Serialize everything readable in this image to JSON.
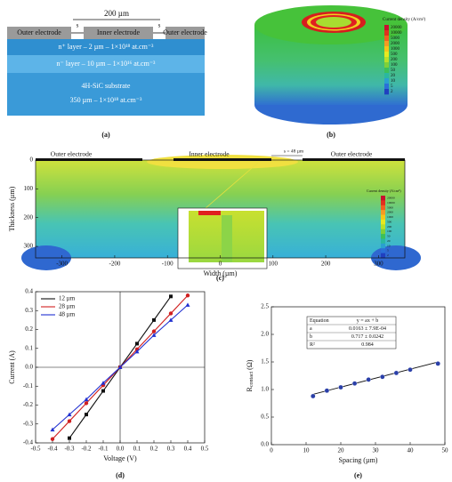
{
  "panels": {
    "a": {
      "label": "(a)",
      "dimension": "200 µm",
      "spacing_left": "s",
      "spacing_right": "s",
      "outer_left": "Outer electrode",
      "inner": "Inner electrode",
      "outer_right": "Outer electrode",
      "n_plus": "n⁺ layer – 2 µm – 1×10¹⁸ at.cm⁻³",
      "n_minus": "n⁻ layer – 10 µm – 1×10¹⁶ at.cm⁻³",
      "substrate": "4H-SiC substrate",
      "substrate_spec": "350 µm – 1×10¹⁸ at.cm⁻³"
    },
    "b": {
      "label": "(b)",
      "colorbar_title": "Current density (A/cm²)",
      "colorbar_values": [
        20000,
        10000,
        5000,
        2000,
        1000,
        500,
        200,
        100,
        50,
        20,
        10,
        5,
        2
      ]
    }
  },
  "chart_data": [
    {
      "type": "contour",
      "panel_label": "(c)",
      "xlabel": "Width (µm)",
      "ylabel": "Thickness (µm)",
      "xlim": [
        -350,
        350
      ],
      "ylim": [
        340,
        0
      ],
      "xticks": [
        -300,
        -200,
        -100,
        0,
        100,
        200,
        300
      ],
      "yticks": [
        0,
        100,
        200,
        300
      ],
      "annotations": [
        "Outer electrode",
        "Inner electrode",
        "Outer electrode",
        "s = 48 µm"
      ],
      "inset_colorbar_title": "Current density (A/cm²)",
      "inset_colorbar_values": [
        20000,
        10000,
        5000,
        2000,
        1000,
        500,
        200,
        100,
        50,
        20,
        10,
        5,
        2
      ]
    },
    {
      "type": "line",
      "panel_label": "(d)",
      "xlabel": "Voltage (V)",
      "ylabel": "Current (A)",
      "x": [
        -0.4,
        -0.3,
        -0.2,
        -0.1,
        0,
        0.1,
        0.2,
        0.3,
        0.4
      ],
      "series": [
        {
          "name": "12 µm",
          "color": "#111111",
          "values": [
            null,
            -0.375,
            -0.25,
            -0.125,
            0,
            0.125,
            0.25,
            0.375,
            null
          ]
        },
        {
          "name": "28 µm",
          "color": "#d02020",
          "values": [
            -0.38,
            -0.285,
            -0.19,
            -0.095,
            0,
            0.095,
            0.19,
            0.285,
            0.38
          ]
        },
        {
          "name": "48 µm",
          "color": "#2030d0",
          "values": [
            -0.33,
            -0.25,
            -0.17,
            -0.083,
            0,
            0.083,
            0.17,
            0.25,
            0.33
          ]
        }
      ],
      "xlim": [
        -0.5,
        0.5
      ],
      "ylim": [
        -0.4,
        0.4
      ],
      "xticks": [
        -0.5,
        -0.4,
        -0.3,
        -0.2,
        -0.1,
        {
          "value": 0,
          "label": "0.0"
        },
        0.1,
        0.2,
        0.3,
        0.4,
        0.5
      ],
      "yticks": [
        -0.4,
        -0.3,
        -0.2,
        -0.1,
        {
          "value": 0,
          "label": "0.0"
        },
        0.1,
        0.2,
        0.3,
        0.4
      ],
      "legend": "upper left"
    },
    {
      "type": "scatter",
      "panel_label": "(e)",
      "xlabel": "Spacing (µm)",
      "ylabel": "R",
      "ylabel_subscript": "contact",
      "ylabel_unit": "(Ω)",
      "x": [
        12,
        16,
        20,
        24,
        28,
        32,
        36,
        40,
        48
      ],
      "values": [
        0.88,
        0.98,
        1.04,
        1.11,
        1.18,
        1.23,
        1.3,
        1.36,
        1.47
      ],
      "color": "#2a3fa8",
      "fit": {
        "a": 0.0163,
        "b": 0.717
      },
      "table": [
        [
          "Equation",
          "y = ax + b"
        ],
        [
          "a",
          "0.0163 ± 7.9E-04"
        ],
        [
          "b",
          "0.717 ± 0.0242"
        ],
        [
          "R²",
          "0.984"
        ]
      ],
      "xlim": [
        0,
        50
      ],
      "ylim": [
        0,
        2.5
      ],
      "xticks": [
        0,
        10,
        20,
        30,
        40,
        50
      ],
      "yticks": [
        {
          "value": 0,
          "label": "0.0"
        },
        0.5,
        {
          "value": 1,
          "label": "1.0"
        },
        1.5,
        {
          "value": 2,
          "label": "2.0"
        },
        2.5
      ]
    }
  ]
}
